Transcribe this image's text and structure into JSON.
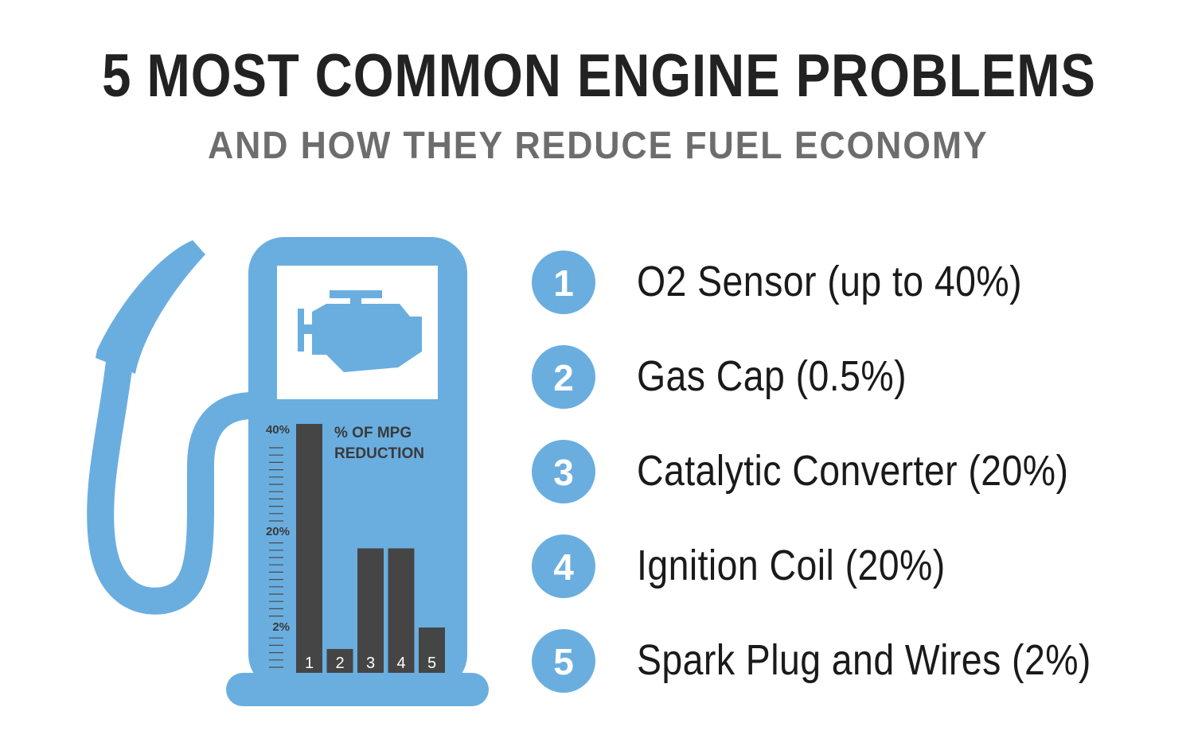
{
  "title": "5 MOST COMMON ENGINE PROBLEMS",
  "subtitle": "AND HOW THEY REDUCE FUEL ECONOMY",
  "colors": {
    "pump": "#6aaee0",
    "bar": "#454545",
    "screen": "#ffffff",
    "title": "#222222",
    "subtitle": "#6d6d6d"
  },
  "chart_data": {
    "type": "bar",
    "title": "% OF MPG REDUCTION",
    "categories": [
      "1",
      "2",
      "3",
      "4",
      "5"
    ],
    "values": [
      40,
      0.5,
      20,
      20,
      2
    ],
    "ylim": [
      0,
      40
    ],
    "yticks": [
      "40%",
      "20%",
      "2%"
    ],
    "grid": false
  },
  "problems": [
    {
      "number": "1",
      "label": "O2 Sensor (up to 40%)"
    },
    {
      "number": "2",
      "label": "Gas Cap (0.5%)"
    },
    {
      "number": "3",
      "label": "Catalytic Converter (20%)"
    },
    {
      "number": "4",
      "label": "Ignition Coil (20%)"
    },
    {
      "number": "5",
      "label": "Spark Plug and Wires (2%)"
    }
  ],
  "icons": [
    "fuel-pump-icon",
    "engine-icon"
  ]
}
